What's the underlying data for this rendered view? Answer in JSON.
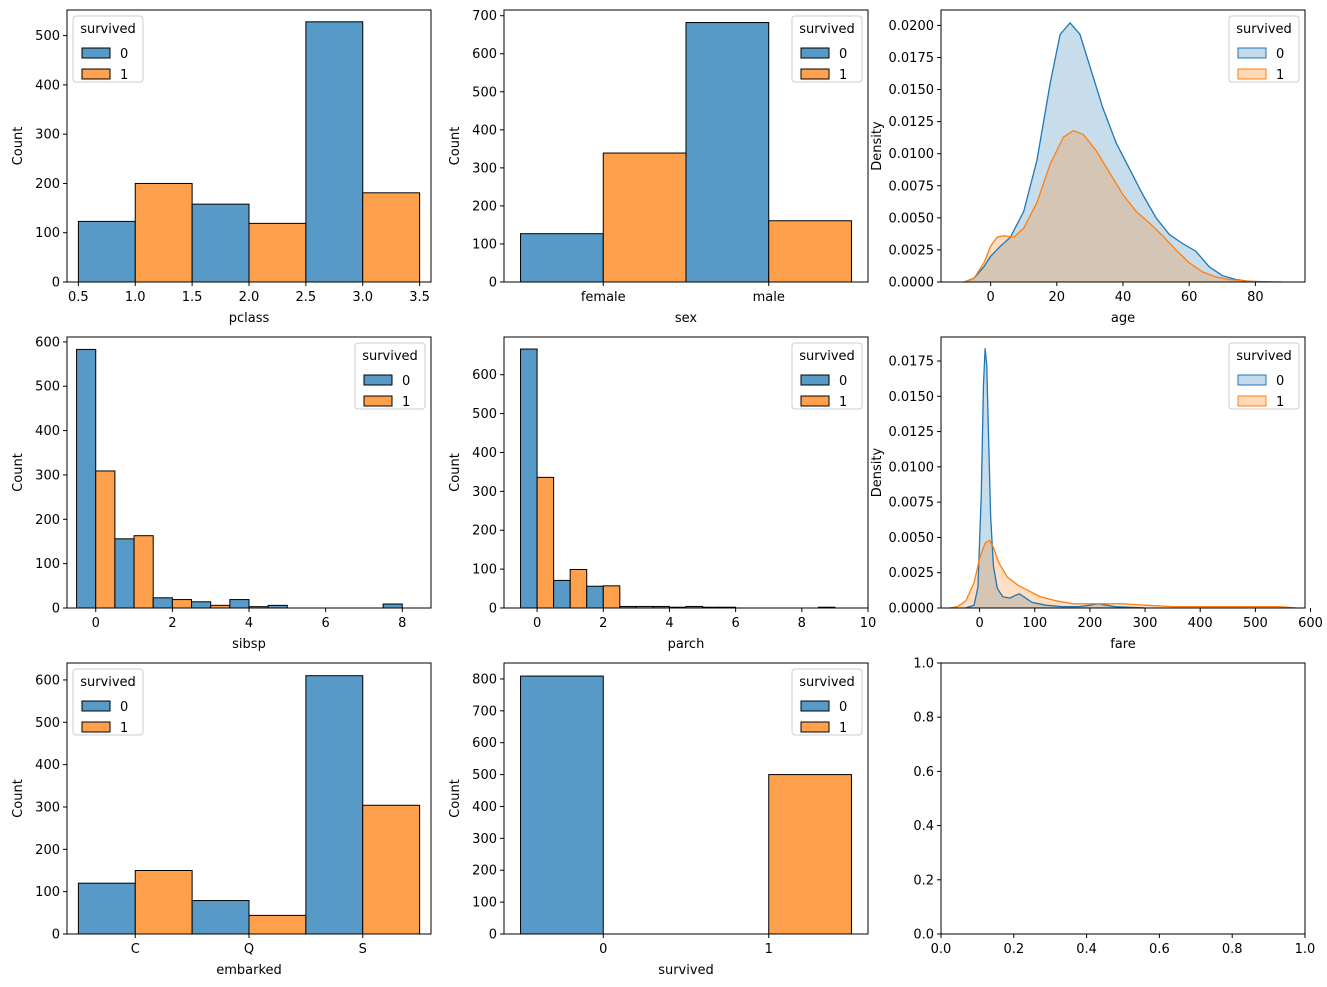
{
  "colors": {
    "class0": "#1f77b4",
    "class1": "#ff7f0e",
    "bar0": "#5799c7",
    "bar1": "#ffa04c",
    "kdefill0": "#c6d9eb",
    "kdefill1": "#ffd9b8",
    "overlap": "#c6c5bd"
  },
  "chart_data": [
    {
      "id": "pclass",
      "type": "bar",
      "xlabel": "pclass",
      "ylabel": "Count",
      "xlim": [
        0.4,
        3.6
      ],
      "ylim": [
        0,
        552
      ],
      "xticks": [
        0.5,
        1.0,
        1.5,
        2.0,
        2.5,
        3.0,
        3.5
      ],
      "xtick_labels": [
        "0.5",
        "1.0",
        "1.5",
        "2.0",
        "2.5",
        "3.0",
        "3.5"
      ],
      "yticks": [
        0,
        100,
        200,
        300,
        400,
        500
      ],
      "ytick_labels": [
        "0",
        "100",
        "200",
        "300",
        "400",
        "500"
      ],
      "legend": {
        "title": "survived",
        "entries": [
          "0",
          "1"
        ],
        "loc": "upper left",
        "kind": "bar"
      },
      "bars": [
        {
          "x0": 0.5,
          "x1": 1.0,
          "value": 123,
          "series": 0
        },
        {
          "x0": 1.0,
          "x1": 1.5,
          "value": 200,
          "series": 1
        },
        {
          "x0": 1.5,
          "x1": 2.0,
          "value": 158,
          "series": 0
        },
        {
          "x0": 2.0,
          "x1": 2.5,
          "value": 119,
          "series": 1
        },
        {
          "x0": 2.5,
          "x1": 3.0,
          "value": 528,
          "series": 0
        },
        {
          "x0": 3.0,
          "x1": 3.5,
          "value": 181,
          "series": 1
        }
      ]
    },
    {
      "id": "sex",
      "type": "bar",
      "xlabel": "sex",
      "ylabel": "Count",
      "xlim": [
        -0.6,
        1.6
      ],
      "ylim": [
        0,
        715
      ],
      "xticks": [
        0,
        1
      ],
      "xtick_labels": [
        "female",
        "male"
      ],
      "yticks": [
        0,
        100,
        200,
        300,
        400,
        500,
        600,
        700
      ],
      "ytick_labels": [
        "0",
        "100",
        "200",
        "300",
        "400",
        "500",
        "600",
        "700"
      ],
      "legend": {
        "title": "survived",
        "entries": [
          "0",
          "1"
        ],
        "loc": "upper right",
        "kind": "bar"
      },
      "bars": [
        {
          "x0": -0.5,
          "x1": 0.0,
          "value": 127,
          "series": 0
        },
        {
          "x0": 0.0,
          "x1": 0.5,
          "value": 339,
          "series": 1
        },
        {
          "x0": 0.5,
          "x1": 1.0,
          "value": 682,
          "series": 0
        },
        {
          "x0": 1.0,
          "x1": 1.5,
          "value": 161,
          "series": 1
        }
      ]
    },
    {
      "id": "age",
      "type": "area",
      "xlabel": "age",
      "ylabel": "Density",
      "xlim": [
        -15,
        95
      ],
      "ylim": [
        0,
        0.0212
      ],
      "xticks": [
        0,
        20,
        40,
        60,
        80
      ],
      "xtick_labels": [
        "0",
        "20",
        "40",
        "60",
        "80"
      ],
      "yticks": [
        0,
        0.0025,
        0.005,
        0.0075,
        0.01,
        0.0125,
        0.015,
        0.0175,
        0.02
      ],
      "ytick_labels": [
        "0.0000",
        "0.0025",
        "0.0050",
        "0.0075",
        "0.0100",
        "0.0125",
        "0.0150",
        "0.0175",
        "0.0200"
      ],
      "legend": {
        "title": "survived",
        "entries": [
          "0",
          "1"
        ],
        "loc": "upper right",
        "kind": "kde"
      },
      "series": [
        {
          "name": "0",
          "x": [
            -8,
            -5,
            -2,
            0,
            3,
            6,
            10,
            14,
            18,
            21,
            24,
            27,
            30,
            34,
            38,
            42,
            46,
            50,
            54,
            58,
            62,
            66,
            70,
            74,
            78,
            82
          ],
          "y": [
            0,
            0.0003,
            0.0012,
            0.002,
            0.0028,
            0.0035,
            0.0055,
            0.0095,
            0.0155,
            0.0193,
            0.0202,
            0.0193,
            0.0168,
            0.0135,
            0.0108,
            0.0088,
            0.0068,
            0.005,
            0.0037,
            0.003,
            0.0024,
            0.0012,
            0.0005,
            0.0002,
            5e-05,
            0
          ]
        },
        {
          "name": "1",
          "x": [
            -8,
            -5,
            -2,
            0,
            2,
            4,
            7,
            10,
            14,
            18,
            22,
            25,
            28,
            32,
            36,
            40,
            44,
            48,
            52,
            56,
            60,
            64,
            68,
            72,
            76,
            80,
            84,
            88
          ],
          "y": [
            0,
            0.0003,
            0.0015,
            0.0028,
            0.0035,
            0.0036,
            0.0035,
            0.0042,
            0.0062,
            0.0092,
            0.0113,
            0.0118,
            0.0115,
            0.0102,
            0.0085,
            0.0068,
            0.0055,
            0.0046,
            0.0036,
            0.0025,
            0.0015,
            0.0008,
            0.0004,
            0.0002,
            0.0001,
            5e-05,
            2e-05,
            0
          ]
        }
      ]
    },
    {
      "id": "sibsp",
      "type": "bar",
      "xlabel": "sibsp",
      "ylabel": "Count",
      "xlim": [
        -0.75,
        8.75
      ],
      "ylim": [
        0,
        611
      ],
      "xticks": [
        0,
        2,
        4,
        6,
        8
      ],
      "xtick_labels": [
        "0",
        "2",
        "4",
        "6",
        "8"
      ],
      "yticks": [
        0,
        100,
        200,
        300,
        400,
        500,
        600
      ],
      "ytick_labels": [
        "0",
        "100",
        "200",
        "300",
        "400",
        "500",
        "600"
      ],
      "legend": {
        "title": "survived",
        "entries": [
          "0",
          "1"
        ],
        "loc": "upper right",
        "kind": "bar"
      },
      "bars": [
        {
          "x0": -0.5,
          "x1": 0.0,
          "value": 583,
          "series": 0
        },
        {
          "x0": 0.0,
          "x1": 0.5,
          "value": 309,
          "series": 1
        },
        {
          "x0": 0.5,
          "x1": 1.0,
          "value": 156,
          "series": 0
        },
        {
          "x0": 1.0,
          "x1": 1.5,
          "value": 163,
          "series": 1
        },
        {
          "x0": 1.5,
          "x1": 2.0,
          "value": 23,
          "series": 0
        },
        {
          "x0": 2.0,
          "x1": 2.5,
          "value": 19,
          "series": 1
        },
        {
          "x0": 2.5,
          "x1": 3.0,
          "value": 14,
          "series": 0
        },
        {
          "x0": 3.0,
          "x1": 3.5,
          "value": 6,
          "series": 1
        },
        {
          "x0": 3.5,
          "x1": 4.0,
          "value": 19,
          "series": 0
        },
        {
          "x0": 4.0,
          "x1": 4.5,
          "value": 3,
          "series": 1
        },
        {
          "x0": 4.5,
          "x1": 5.0,
          "value": 6,
          "series": 0
        },
        {
          "x0": 5.0,
          "x1": 5.5,
          "value": 0,
          "series": 1
        },
        {
          "x0": 5.5,
          "x1": 6.0,
          "value": 0,
          "series": 0
        },
        {
          "x0": 6.0,
          "x1": 6.5,
          "value": 0,
          "series": 1
        },
        {
          "x0": 6.5,
          "x1": 7.0,
          "value": 0,
          "series": 0
        },
        {
          "x0": 7.0,
          "x1": 7.5,
          "value": 0,
          "series": 1
        },
        {
          "x0": 7.5,
          "x1": 8.0,
          "value": 9,
          "series": 0
        },
        {
          "x0": 8.0,
          "x1": 8.5,
          "value": 0,
          "series": 1
        }
      ]
    },
    {
      "id": "parch",
      "type": "bar",
      "xlabel": "parch",
      "ylabel": "Count",
      "xlim": [
        -1,
        10
      ],
      "ylim": [
        0,
        697
      ],
      "xticks": [
        0,
        2,
        4,
        6,
        8,
        10
      ],
      "xtick_labels": [
        "0",
        "2",
        "4",
        "6",
        "8",
        "10"
      ],
      "yticks": [
        0,
        100,
        200,
        300,
        400,
        500,
        600
      ],
      "ytick_labels": [
        "0",
        "100",
        "200",
        "300",
        "400",
        "500",
        "600"
      ],
      "legend": {
        "title": "survived",
        "entries": [
          "0",
          "1"
        ],
        "loc": "upper right",
        "kind": "bar"
      },
      "bars": [
        {
          "x0": -0.5,
          "x1": 0.0,
          "value": 666,
          "series": 0
        },
        {
          "x0": 0.0,
          "x1": 0.5,
          "value": 336,
          "series": 1
        },
        {
          "x0": 0.5,
          "x1": 1.0,
          "value": 71,
          "series": 0
        },
        {
          "x0": 1.0,
          "x1": 1.5,
          "value": 99,
          "series": 1
        },
        {
          "x0": 1.5,
          "x1": 2.0,
          "value": 56,
          "series": 0
        },
        {
          "x0": 2.0,
          "x1": 2.5,
          "value": 57,
          "series": 1
        },
        {
          "x0": 2.5,
          "x1": 3.0,
          "value": 4,
          "series": 0
        },
        {
          "x0": 3.0,
          "x1": 3.5,
          "value": 4,
          "series": 1
        },
        {
          "x0": 3.5,
          "x1": 4.0,
          "value": 4,
          "series": 0
        },
        {
          "x0": 4.0,
          "x1": 4.5,
          "value": 2,
          "series": 1
        },
        {
          "x0": 4.5,
          "x1": 5.0,
          "value": 4,
          "series": 0
        },
        {
          "x0": 5.0,
          "x1": 5.5,
          "value": 2,
          "series": 1
        },
        {
          "x0": 5.5,
          "x1": 6.0,
          "value": 2,
          "series": 0
        },
        {
          "x0": 6.0,
          "x1": 6.5,
          "value": 0,
          "series": 1
        },
        {
          "x0": 6.5,
          "x1": 7.0,
          "value": 0,
          "series": 0
        },
        {
          "x0": 7.0,
          "x1": 7.5,
          "value": 0,
          "series": 1
        },
        {
          "x0": 7.5,
          "x1": 8.0,
          "value": 0,
          "series": 0
        },
        {
          "x0": 8.0,
          "x1": 8.5,
          "value": 0,
          "series": 1
        },
        {
          "x0": 8.5,
          "x1": 9.0,
          "value": 2,
          "series": 0
        },
        {
          "x0": 9.0,
          "x1": 9.5,
          "value": 0,
          "series": 1
        }
      ]
    },
    {
      "id": "fare",
      "type": "area",
      "xlabel": "fare",
      "ylabel": "Density",
      "xlim": [
        -70,
        590
      ],
      "ylim": [
        0,
        0.0192
      ],
      "xticks": [
        0,
        100,
        200,
        300,
        400,
        500,
        600
      ],
      "xtick_labels": [
        "0",
        "100",
        "200",
        "300",
        "400",
        "500",
        "600"
      ],
      "yticks": [
        0,
        0.0025,
        0.005,
        0.0075,
        0.01,
        0.0125,
        0.015,
        0.0175
      ],
      "ytick_labels": [
        "0.0000",
        "0.0025",
        "0.0050",
        "0.0075",
        "0.0100",
        "0.0125",
        "0.0150",
        "0.0175"
      ],
      "legend": {
        "title": "survived",
        "entries": [
          "0",
          "1"
        ],
        "loc": "upper right",
        "kind": "kde"
      },
      "series": [
        {
          "name": "0",
          "x": [
            -25,
            -10,
            -3,
            3,
            7,
            10,
            13,
            16,
            20,
            25,
            32,
            42,
            55,
            65,
            72,
            80,
            95,
            120,
            150,
            180,
            200,
            215,
            230,
            245,
            270,
            300
          ],
          "y": [
            0,
            0.0002,
            0.0015,
            0.008,
            0.0158,
            0.0184,
            0.0172,
            0.0125,
            0.0065,
            0.003,
            0.0014,
            0.0008,
            0.0007,
            0.0009,
            0.001,
            0.0008,
            0.0004,
            0.0002,
            0.0001,
            0.0001,
            0.0002,
            0.0003,
            0.0002,
            0.0001,
            5e-05,
            0
          ]
        },
        {
          "name": "1",
          "x": [
            -55,
            -40,
            -25,
            -10,
            0,
            10,
            18,
            25,
            35,
            50,
            70,
            90,
            110,
            140,
            170,
            200,
            230,
            260,
            300,
            350,
            400,
            450,
            500,
            520,
            540,
            560,
            575
          ],
          "y": [
            0,
            0.0001,
            0.0005,
            0.0018,
            0.0035,
            0.0046,
            0.0048,
            0.0043,
            0.0032,
            0.0022,
            0.0016,
            0.0012,
            0.0008,
            0.0005,
            0.0003,
            0.0003,
            0.0003,
            0.0003,
            0.0002,
            0.0001,
            0.0001,
            0.0001,
            0.0001,
            0.0001,
            0.0001,
            5e-05,
            0
          ]
        }
      ]
    },
    {
      "id": "embarked",
      "type": "bar",
      "xlabel": "embarked",
      "ylabel": "Count",
      "xlim": [
        -0.6,
        2.6
      ],
      "ylim": [
        0,
        640
      ],
      "xticks": [
        0,
        1,
        2
      ],
      "xtick_labels": [
        "C",
        "Q",
        "S"
      ],
      "yticks": [
        0,
        100,
        200,
        300,
        400,
        500,
        600
      ],
      "ytick_labels": [
        "0",
        "100",
        "200",
        "300",
        "400",
        "500",
        "600"
      ],
      "legend": {
        "title": "survived",
        "entries": [
          "0",
          "1"
        ],
        "loc": "upper left",
        "kind": "bar"
      },
      "bars": [
        {
          "x0": -0.5,
          "x1": 0.0,
          "value": 120,
          "series": 0
        },
        {
          "x0": 0.0,
          "x1": 0.5,
          "value": 150,
          "series": 1
        },
        {
          "x0": 0.5,
          "x1": 1.0,
          "value": 79,
          "series": 0
        },
        {
          "x0": 1.0,
          "x1": 1.5,
          "value": 44,
          "series": 1
        },
        {
          "x0": 1.5,
          "x1": 2.0,
          "value": 610,
          "series": 0
        },
        {
          "x0": 2.0,
          "x1": 2.5,
          "value": 304,
          "series": 1
        }
      ]
    },
    {
      "id": "survived",
      "type": "bar",
      "xlabel": "survived",
      "ylabel": "Count",
      "xlim": [
        -0.6,
        1.6
      ],
      "ylim": [
        0,
        850
      ],
      "xticks": [
        0,
        1
      ],
      "xtick_labels": [
        "0",
        "1"
      ],
      "yticks": [
        0,
        100,
        200,
        300,
        400,
        500,
        600,
        700,
        800
      ],
      "ytick_labels": [
        "0",
        "100",
        "200",
        "300",
        "400",
        "500",
        "600",
        "700",
        "800"
      ],
      "legend": {
        "title": "survived",
        "entries": [
          "0",
          "1"
        ],
        "loc": "upper right",
        "kind": "bar"
      },
      "bars": [
        {
          "x0": -0.5,
          "x1": 0.0,
          "value": 809,
          "series": 0
        },
        {
          "x0": 0.0,
          "x1": 0.5,
          "value": 0,
          "series": 1
        },
        {
          "x0": 0.5,
          "x1": 1.0,
          "value": 0,
          "series": 0
        },
        {
          "x0": 1.0,
          "x1": 1.5,
          "value": 500,
          "series": 1
        }
      ]
    },
    {
      "id": "empty",
      "type": "line",
      "xlabel": "",
      "ylabel": "",
      "xlim": [
        0,
        1
      ],
      "ylim": [
        0,
        1
      ],
      "xticks": [
        0,
        0.2,
        0.4,
        0.6,
        0.8,
        1.0
      ],
      "xtick_labels": [
        "0.0",
        "0.2",
        "0.4",
        "0.6",
        "0.8",
        "1.0"
      ],
      "yticks": [
        0,
        0.2,
        0.4,
        0.6,
        0.8,
        1.0
      ],
      "ytick_labels": [
        "0.0",
        "0.2",
        "0.4",
        "0.6",
        "0.8",
        "1.0"
      ],
      "legend": null
    }
  ]
}
